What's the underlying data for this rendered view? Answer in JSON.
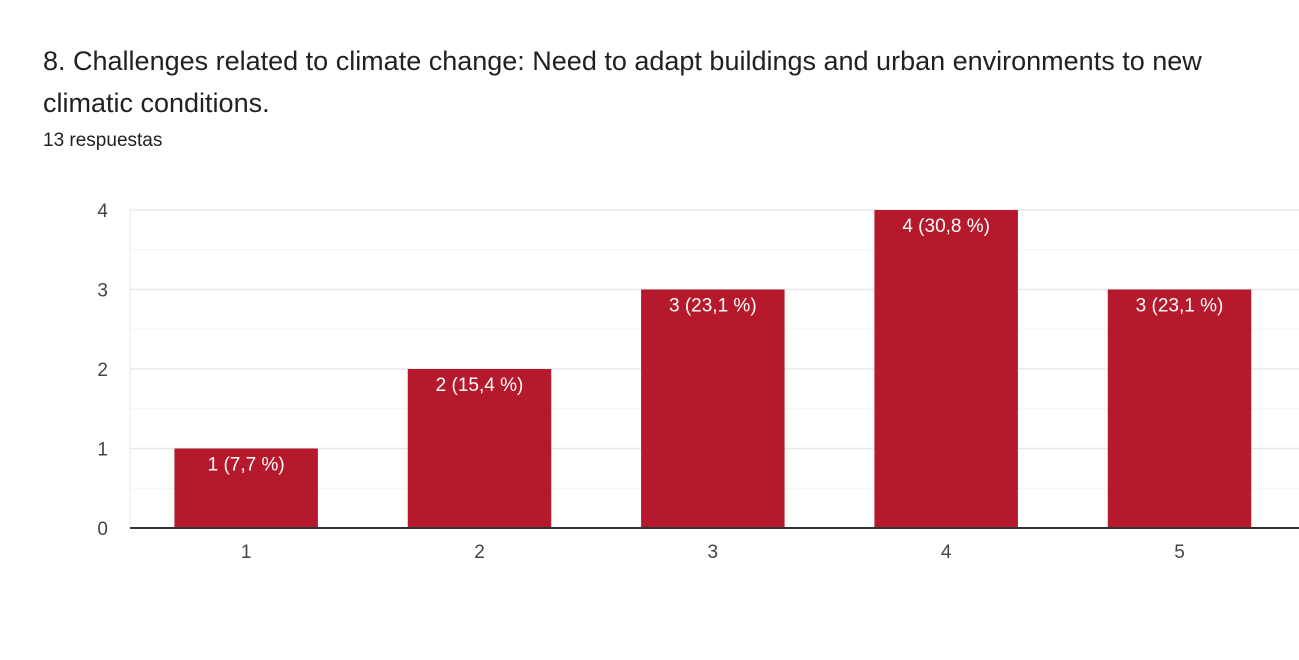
{
  "question": {
    "title": "8. Challenges related to climate change: Need to adapt buildings and urban environments to new climatic conditions.",
    "response_count": "13 respuestas"
  },
  "colors": {
    "bar": "#b5192b",
    "grid": "#e8e8e8",
    "grid_minor": "#f3f3f3",
    "axis": "#333333"
  },
  "chart_data": {
    "type": "bar",
    "title": "8. Challenges related to climate change: Need to adapt buildings and urban environments to new climatic conditions.",
    "categories": [
      "1",
      "2",
      "3",
      "4",
      "5"
    ],
    "values": [
      1,
      2,
      3,
      4,
      3
    ],
    "data_labels": [
      "1 (7,7 %)",
      "2 (15,4 %)",
      "3 (23,1 %)",
      "4 (30,8 %)",
      "3 (23,1 %)"
    ],
    "y_ticks": [
      "0",
      "1",
      "2",
      "3",
      "4"
    ],
    "ylim": [
      0,
      4
    ],
    "grid": true,
    "legend": "none"
  }
}
